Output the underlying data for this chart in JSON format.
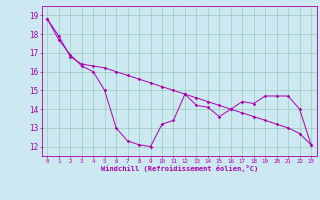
{
  "xlabel": "Windchill (Refroidissement éolien,°C)",
  "xlim": [
    -0.5,
    23.5
  ],
  "ylim": [
    11.5,
    19.5
  ],
  "yticks": [
    12,
    13,
    14,
    15,
    16,
    17,
    18,
    19
  ],
  "xticks": [
    0,
    1,
    2,
    3,
    4,
    5,
    6,
    7,
    8,
    9,
    10,
    11,
    12,
    13,
    14,
    15,
    16,
    17,
    18,
    19,
    20,
    21,
    22,
    23
  ],
  "bg_color": "#cce8f0",
  "line_color": "#aa00aa",
  "grid_color": "#99ccbb",
  "series1_x": [
    0,
    1,
    2,
    3,
    4,
    5,
    6,
    7,
    8,
    9,
    10,
    11,
    12,
    13,
    14,
    15,
    16,
    17,
    18,
    19,
    20,
    21,
    22,
    23
  ],
  "series1_y": [
    18.8,
    17.7,
    16.9,
    16.3,
    16.0,
    15.0,
    13.0,
    12.3,
    12.1,
    12.0,
    13.2,
    13.4,
    14.8,
    14.2,
    14.1,
    13.6,
    14.0,
    14.4,
    14.3,
    14.7,
    14.7,
    14.7,
    14.0,
    12.1
  ],
  "series2_x": [
    0,
    1,
    2,
    3,
    4,
    5,
    6,
    7,
    8,
    9,
    10,
    11,
    12,
    13,
    14,
    15,
    16,
    17,
    18,
    19,
    20,
    21,
    22,
    23
  ],
  "series2_y": [
    18.8,
    17.9,
    16.8,
    16.4,
    16.3,
    16.2,
    16.0,
    15.8,
    15.6,
    15.4,
    15.2,
    15.0,
    14.8,
    14.6,
    14.4,
    14.2,
    14.0,
    13.8,
    13.6,
    13.4,
    13.2,
    13.0,
    12.7,
    12.1
  ]
}
